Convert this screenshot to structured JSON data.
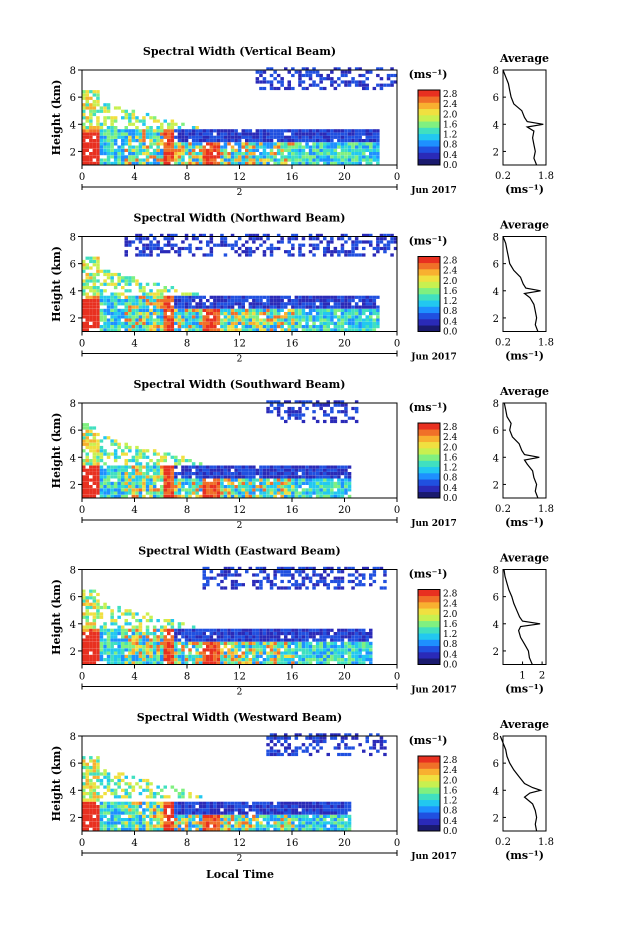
{
  "figure": {
    "x_axis_title": "Local Time",
    "colorbar_unit": "(ms⁻¹)",
    "average_title": "Average",
    "average_xlabel": "(ms⁻¹)",
    "date_label": "Jun 2017",
    "day_label": "2",
    "height_label": "Height (km)"
  },
  "colorscale": {
    "ticks": [
      "2.8",
      "2.4",
      "2.0",
      "1.6",
      "1.2",
      "0.8",
      "0.4",
      "0.0"
    ],
    "colors": [
      "#1a1a6e",
      "#2a2ab8",
      "#2050e0",
      "#1e90ff",
      "#22c8f0",
      "#40e0c0",
      "#80f080",
      "#c8f050",
      "#f0e040",
      "#f8b030",
      "#f07028",
      "#e83020"
    ]
  },
  "chart_data": [
    {
      "type": "heatmap",
      "title": "Spectral Width (Vertical Beam)",
      "xlabel": "",
      "ylabel": "Height (km)",
      "x_ticks": [
        "0",
        "4",
        "8",
        "12",
        "16",
        "20",
        "0"
      ],
      "y_ticks": [
        "2",
        "4",
        "6",
        "8"
      ],
      "xlim": [
        0,
        24
      ],
      "ylim": [
        1,
        8
      ],
      "colorbar_ticks": [
        "2.8",
        "2.4",
        "2.0",
        "1.6",
        "1.2",
        "0.8",
        "0.4",
        "0.0"
      ],
      "layer_top_km": 3.6,
      "layer_end_hour": 22.5,
      "upper_patch_hours": [
        13,
        24
      ],
      "average_profile": {
        "title": "Average",
        "xlabel": "(ms⁻¹)",
        "x_ticks": [
          "0.2",
          "1.8"
        ],
        "xlim": [
          0.2,
          1.8
        ],
        "y_ticks": [
          "2",
          "4",
          "6",
          "8"
        ],
        "ylim": [
          1,
          8
        ],
        "height_km": [
          1.0,
          1.5,
          2.0,
          2.5,
          3.0,
          3.5,
          3.8,
          4.0,
          4.2,
          4.5,
          5.0,
          5.5,
          6.0,
          6.5,
          7.0,
          7.5,
          8.0
        ],
        "width_ms": [
          1.45,
          1.35,
          1.4,
          1.35,
          1.3,
          1.35,
          1.1,
          1.7,
          1.1,
          1.0,
          0.9,
          0.6,
          0.5,
          0.45,
          0.4,
          0.3,
          0.2
        ]
      }
    },
    {
      "type": "heatmap",
      "title": "Spectral Width (Northward Beam)",
      "xlabel": "",
      "ylabel": "Height (km)",
      "x_ticks": [
        "0",
        "4",
        "8",
        "12",
        "16",
        "20",
        "0"
      ],
      "y_ticks": [
        "2",
        "4",
        "6",
        "8"
      ],
      "xlim": [
        0,
        24
      ],
      "ylim": [
        1,
        8
      ],
      "colorbar_ticks": [
        "2.8",
        "2.4",
        "2.0",
        "1.6",
        "1.2",
        "0.8",
        "0.4",
        "0.0"
      ],
      "layer_top_km": 3.6,
      "layer_end_hour": 22.5,
      "upper_patch_hours": [
        3,
        24
      ],
      "average_profile": {
        "title": "Average",
        "xlabel": "(ms⁻¹)",
        "x_ticks": [
          "0.2",
          "1.8"
        ],
        "xlim": [
          0.2,
          1.8
        ],
        "y_ticks": [
          "2",
          "4",
          "6",
          "8"
        ],
        "ylim": [
          1,
          8
        ],
        "height_km": [
          1.0,
          1.5,
          2.0,
          2.5,
          3.0,
          3.5,
          3.8,
          4.0,
          4.2,
          4.5,
          5.0,
          5.5,
          6.0,
          6.5,
          7.0,
          7.5,
          8.0
        ],
        "width_ms": [
          1.5,
          1.4,
          1.45,
          1.4,
          1.35,
          1.2,
          1.0,
          1.6,
          1.05,
          0.95,
          0.85,
          0.6,
          0.45,
          0.4,
          0.35,
          0.3,
          0.2
        ]
      }
    },
    {
      "type": "heatmap",
      "title": "Spectral Width (Southward Beam)",
      "xlabel": "",
      "ylabel": "Height (km)",
      "x_ticks": [
        "0",
        "4",
        "8",
        "12",
        "16",
        "20",
        "0"
      ],
      "y_ticks": [
        "2",
        "4",
        "6",
        "8"
      ],
      "xlim": [
        0,
        24
      ],
      "ylim": [
        1,
        8
      ],
      "colorbar_ticks": [
        "2.8",
        "2.4",
        "2.0",
        "1.6",
        "1.2",
        "0.8",
        "0.4",
        "0.0"
      ],
      "layer_top_km": 3.4,
      "layer_end_hour": 20.5,
      "upper_patch_hours": [
        14,
        21
      ],
      "average_profile": {
        "title": "Average",
        "xlabel": "(ms⁻¹)",
        "x_ticks": [
          "0.2",
          "1.8"
        ],
        "xlim": [
          0.2,
          1.8
        ],
        "y_ticks": [
          "2",
          "4",
          "6",
          "8"
        ],
        "ylim": [
          1,
          8
        ],
        "height_km": [
          1.0,
          1.5,
          2.0,
          2.5,
          3.0,
          3.5,
          3.8,
          4.0,
          4.2,
          4.5,
          5.0,
          5.5,
          6.0,
          6.5,
          7.0,
          7.5,
          8.0
        ],
        "width_ms": [
          1.5,
          1.4,
          1.45,
          1.35,
          1.3,
          1.1,
          1.0,
          1.55,
          1.0,
          0.9,
          0.8,
          0.55,
          0.45,
          0.5,
          0.35,
          0.3,
          0.25
        ]
      }
    },
    {
      "type": "heatmap",
      "title": "Spectral Width (Eastward Beam)",
      "xlabel": "",
      "ylabel": "Height (km)",
      "x_ticks": [
        "0",
        "4",
        "8",
        "12",
        "16",
        "20",
        "0"
      ],
      "y_ticks": [
        "2",
        "4",
        "6",
        "8"
      ],
      "xlim": [
        0,
        24
      ],
      "ylim": [
        1,
        8
      ],
      "colorbar_ticks": [
        "2.8",
        "2.4",
        "2.0",
        "1.6",
        "1.2",
        "0.8",
        "0.4",
        "0.0"
      ],
      "layer_top_km": 3.6,
      "layer_end_hour": 22.0,
      "upper_patch_hours": [
        9,
        23
      ],
      "average_profile": {
        "title": "Average",
        "xlabel": "(ms⁻¹)",
        "x_ticks": [
          "1",
          "2"
        ],
        "xlim": [
          0.0,
          2.2
        ],
        "y_ticks": [
          "2",
          "4",
          "6",
          "8"
        ],
        "ylim": [
          1,
          8
        ],
        "height_km": [
          1.0,
          1.5,
          2.0,
          2.5,
          3.0,
          3.5,
          3.8,
          4.0,
          4.2,
          4.5,
          5.0,
          5.5,
          6.0,
          6.5,
          7.0,
          7.5,
          8.0
        ],
        "width_ms": [
          1.5,
          1.35,
          1.3,
          1.1,
          0.9,
          0.8,
          0.9,
          1.9,
          1.0,
          0.85,
          0.7,
          0.55,
          0.45,
          0.3,
          0.2,
          0.1,
          0.05
        ]
      }
    },
    {
      "type": "heatmap",
      "title": "Spectral Width (Westward Beam)",
      "xlabel": "Local Time",
      "ylabel": "Height (km)",
      "x_ticks": [
        "0",
        "4",
        "8",
        "12",
        "16",
        "20",
        "0"
      ],
      "y_ticks": [
        "2",
        "4",
        "6",
        "8"
      ],
      "xlim": [
        0,
        24
      ],
      "ylim": [
        1,
        8
      ],
      "colorbar_ticks": [
        "2.8",
        "2.4",
        "2.0",
        "1.6",
        "1.2",
        "0.8",
        "0.4",
        "0.0"
      ],
      "layer_top_km": 3.0,
      "layer_end_hour": 20.5,
      "upper_patch_hours": [
        14,
        23
      ],
      "average_profile": {
        "title": "Average",
        "xlabel": "(ms⁻¹)",
        "x_ticks": [
          "0.2",
          "1.8"
        ],
        "xlim": [
          0.2,
          1.8
        ],
        "y_ticks": [
          "2",
          "4",
          "6",
          "8"
        ],
        "ylim": [
          1,
          8
        ],
        "height_km": [
          1.0,
          1.5,
          2.0,
          2.5,
          3.0,
          3.5,
          3.8,
          4.0,
          4.2,
          4.5,
          5.0,
          5.5,
          6.0,
          6.5,
          7.0,
          7.5,
          8.0
        ],
        "width_ms": [
          1.45,
          1.4,
          1.45,
          1.4,
          1.3,
          1.0,
          1.2,
          1.6,
          1.3,
          1.0,
          0.8,
          0.6,
          0.45,
          0.35,
          0.3,
          0.2,
          0.1
        ]
      }
    }
  ]
}
